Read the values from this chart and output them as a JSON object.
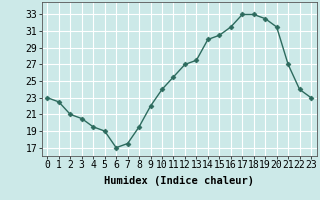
{
  "x": [
    0,
    1,
    2,
    3,
    4,
    5,
    6,
    7,
    8,
    9,
    10,
    11,
    12,
    13,
    14,
    15,
    16,
    17,
    18,
    19,
    20,
    21,
    22,
    23
  ],
  "y": [
    23,
    22.5,
    21,
    20.5,
    19.5,
    19,
    17,
    17.5,
    19.5,
    22,
    24,
    25.5,
    27,
    27.5,
    30,
    30.5,
    31.5,
    33,
    33,
    32.5,
    31.5,
    27,
    24,
    23
  ],
  "line_color": "#2d6b5e",
  "marker": "D",
  "marker_size": 2.5,
  "bg_color": "#cce9e8",
  "grid_color": "#ffffff",
  "xlabel": "Humidex (Indice chaleur)",
  "xlabel_fontsize": 7.5,
  "xlabel_fontweight": "bold",
  "xtick_labels": [
    "0",
    "1",
    "2",
    "3",
    "4",
    "5",
    "6",
    "7",
    "8",
    "9",
    "10",
    "11",
    "12",
    "13",
    "14",
    "15",
    "16",
    "17",
    "18",
    "19",
    "20",
    "21",
    "22",
    "23"
  ],
  "ytick_values": [
    17,
    19,
    21,
    23,
    25,
    27,
    29,
    31,
    33
  ],
  "ylim": [
    16.0,
    34.5
  ],
  "xlim": [
    -0.5,
    23.5
  ],
  "tick_fontsize": 7.0
}
